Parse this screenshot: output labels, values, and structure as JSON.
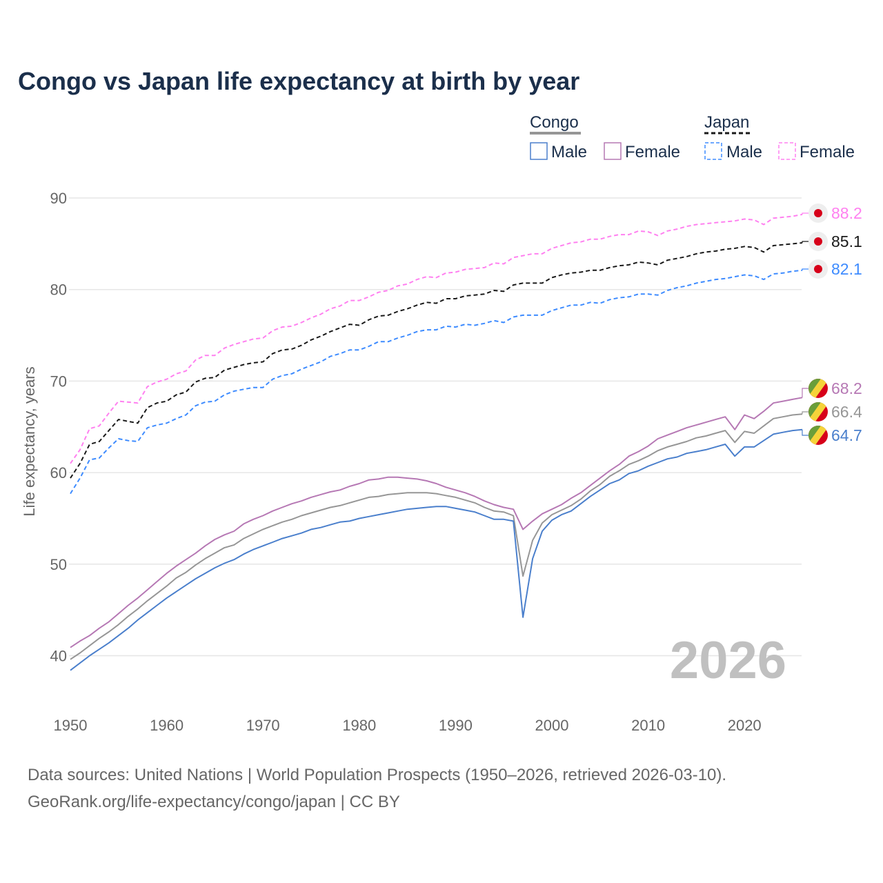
{
  "chart_data": {
    "type": "line",
    "title": "Congo vs Japan life expectancy at birth by year",
    "xlabel": "",
    "ylabel": "Life expectancy, years",
    "xlim": [
      1950,
      2026
    ],
    "ylim": [
      35,
      92
    ],
    "x_ticks": [
      "1950",
      "1960",
      "1970",
      "1980",
      "1990",
      "2000",
      "2010",
      "2020"
    ],
    "y_ticks": [
      "40",
      "50",
      "60",
      "70",
      "80",
      "90"
    ],
    "grid": true,
    "legend_position": "top-right",
    "legend": {
      "groups": [
        {
          "name": "Congo",
          "items": [
            "Male",
            "Female"
          ]
        },
        {
          "name": "Japan",
          "items": [
            "Male",
            "Female"
          ]
        }
      ]
    },
    "year_watermark": "2026",
    "x_start": 1950,
    "series": [
      {
        "name": "Japan Female",
        "color": "#ff80f0",
        "dashed": true,
        "flag": "japan",
        "end_label": "88.2",
        "values": [
          61.0,
          62.5,
          64.8,
          65.1,
          66.5,
          67.8,
          67.7,
          67.6,
          69.4,
          69.9,
          70.2,
          70.8,
          71.1,
          72.3,
          72.8,
          72.8,
          73.6,
          74.0,
          74.3,
          74.6,
          74.7,
          75.5,
          75.9,
          76.0,
          76.4,
          76.9,
          77.3,
          77.9,
          78.2,
          78.8,
          78.8,
          79.2,
          79.7,
          79.9,
          80.4,
          80.6,
          81.1,
          81.4,
          81.3,
          81.8,
          81.9,
          82.2,
          82.3,
          82.4,
          82.9,
          82.8,
          83.5,
          83.7,
          83.9,
          83.9,
          84.5,
          84.8,
          85.1,
          85.2,
          85.5,
          85.5,
          85.8,
          86.0,
          86.0,
          86.4,
          86.3,
          85.9,
          86.4,
          86.6,
          86.9,
          87.1,
          87.2,
          87.3,
          87.4,
          87.5,
          87.7,
          87.6,
          87.1,
          87.8,
          87.9,
          88.0,
          88.2
        ]
      },
      {
        "name": "Japan",
        "color": "#1a1a1a",
        "dashed": true,
        "flag": "japan",
        "end_label": "85.1",
        "values": [
          59.4,
          61.0,
          63.1,
          63.4,
          64.6,
          65.8,
          65.6,
          65.4,
          67.1,
          67.6,
          67.8,
          68.5,
          68.8,
          69.9,
          70.3,
          70.4,
          71.2,
          71.5,
          71.8,
          72.0,
          72.1,
          73.0,
          73.4,
          73.5,
          73.9,
          74.5,
          74.9,
          75.4,
          75.8,
          76.2,
          76.1,
          76.7,
          77.1,
          77.2,
          77.6,
          77.9,
          78.3,
          78.6,
          78.5,
          79.0,
          79.0,
          79.3,
          79.4,
          79.5,
          79.9,
          79.8,
          80.5,
          80.7,
          80.7,
          80.7,
          81.3,
          81.6,
          81.8,
          81.9,
          82.1,
          82.1,
          82.4,
          82.6,
          82.7,
          83.0,
          82.9,
          82.7,
          83.2,
          83.4,
          83.6,
          83.9,
          84.1,
          84.2,
          84.4,
          84.5,
          84.7,
          84.6,
          84.1,
          84.8,
          84.9,
          85.0,
          85.1
        ]
      },
      {
        "name": "Japan Male",
        "color": "#3d8bff",
        "dashed": true,
        "flag": "japan",
        "end_label": "82.1",
        "values": [
          57.7,
          59.4,
          61.4,
          61.6,
          62.7,
          63.7,
          63.5,
          63.4,
          64.9,
          65.2,
          65.4,
          65.9,
          66.3,
          67.3,
          67.7,
          67.8,
          68.5,
          68.9,
          69.1,
          69.3,
          69.3,
          70.2,
          70.6,
          70.8,
          71.3,
          71.7,
          72.1,
          72.7,
          73.0,
          73.4,
          73.4,
          73.8,
          74.3,
          74.3,
          74.7,
          75.0,
          75.4,
          75.6,
          75.6,
          76.0,
          75.9,
          76.2,
          76.1,
          76.3,
          76.6,
          76.4,
          77.0,
          77.2,
          77.2,
          77.2,
          77.7,
          78.0,
          78.3,
          78.3,
          78.6,
          78.5,
          78.9,
          79.1,
          79.2,
          79.5,
          79.5,
          79.4,
          79.9,
          80.2,
          80.4,
          80.7,
          80.9,
          81.1,
          81.2,
          81.4,
          81.6,
          81.5,
          81.1,
          81.7,
          81.8,
          82.0,
          82.1
        ]
      },
      {
        "name": "Congo Female",
        "color": "#b678b4",
        "dashed": false,
        "flag": "congo",
        "end_label": "68.2",
        "values": [
          40.9,
          41.6,
          42.2,
          43.0,
          43.7,
          44.6,
          45.5,
          46.3,
          47.2,
          48.1,
          49.0,
          49.8,
          50.5,
          51.2,
          52.0,
          52.7,
          53.2,
          53.6,
          54.4,
          54.9,
          55.3,
          55.8,
          56.2,
          56.6,
          56.9,
          57.3,
          57.6,
          57.9,
          58.1,
          58.5,
          58.8,
          59.2,
          59.3,
          59.5,
          59.5,
          59.4,
          59.3,
          59.1,
          58.8,
          58.4,
          58.1,
          57.8,
          57.4,
          56.9,
          56.5,
          56.2,
          56.0,
          53.8,
          54.7,
          55.5,
          56.0,
          56.5,
          57.2,
          57.8,
          58.6,
          59.4,
          60.2,
          60.9,
          61.8,
          62.3,
          62.9,
          63.7,
          64.1,
          64.5,
          64.9,
          65.2,
          65.5,
          65.8,
          66.1,
          64.7,
          66.3,
          65.9,
          66.7,
          67.6,
          67.8,
          68.0,
          68.2
        ]
      },
      {
        "name": "Congo",
        "color": "#969696",
        "dashed": false,
        "flag": "congo",
        "end_label": "66.4",
        "values": [
          39.6,
          40.3,
          41.1,
          41.9,
          42.6,
          43.4,
          44.3,
          45.1,
          46.0,
          46.8,
          47.6,
          48.5,
          49.1,
          49.9,
          50.6,
          51.2,
          51.8,
          52.1,
          52.8,
          53.3,
          53.8,
          54.2,
          54.6,
          54.9,
          55.3,
          55.6,
          55.9,
          56.2,
          56.4,
          56.7,
          57.0,
          57.3,
          57.4,
          57.6,
          57.7,
          57.8,
          57.8,
          57.8,
          57.7,
          57.5,
          57.3,
          57.0,
          56.7,
          56.2,
          55.8,
          55.7,
          55.3,
          48.7,
          52.6,
          54.5,
          55.4,
          55.9,
          56.4,
          57.1,
          58.0,
          58.7,
          59.6,
          60.2,
          60.9,
          61.3,
          61.8,
          62.4,
          62.8,
          63.1,
          63.4,
          63.8,
          64.0,
          64.3,
          64.6,
          63.3,
          64.5,
          64.3,
          65.1,
          65.9,
          66.1,
          66.3,
          66.4
        ]
      },
      {
        "name": "Congo Male",
        "color": "#4a7fcc",
        "dashed": false,
        "flag": "congo",
        "end_label": "64.7",
        "values": [
          38.4,
          39.2,
          40.0,
          40.7,
          41.4,
          42.2,
          43.0,
          43.9,
          44.7,
          45.5,
          46.3,
          47.0,
          47.7,
          48.4,
          49.0,
          49.6,
          50.1,
          50.5,
          51.1,
          51.6,
          52.0,
          52.4,
          52.8,
          53.1,
          53.4,
          53.8,
          54.0,
          54.3,
          54.6,
          54.7,
          55.0,
          55.2,
          55.4,
          55.6,
          55.8,
          56.0,
          56.1,
          56.2,
          56.3,
          56.3,
          56.1,
          55.9,
          55.7,
          55.3,
          54.9,
          54.9,
          54.7,
          44.2,
          50.6,
          53.6,
          54.8,
          55.4,
          55.8,
          56.6,
          57.4,
          58.1,
          58.8,
          59.2,
          59.9,
          60.2,
          60.7,
          61.1,
          61.5,
          61.7,
          62.1,
          62.3,
          62.5,
          62.8,
          63.1,
          61.8,
          62.8,
          62.8,
          63.5,
          64.2,
          64.4,
          64.6,
          64.7
        ]
      }
    ]
  },
  "source": {
    "line1": "Data sources: United Nations | World Population Prospects (1950–2026, retrieved 2026-03-10).",
    "line2": "GeoRank.org/life-expectancy/congo/japan | CC BY"
  }
}
